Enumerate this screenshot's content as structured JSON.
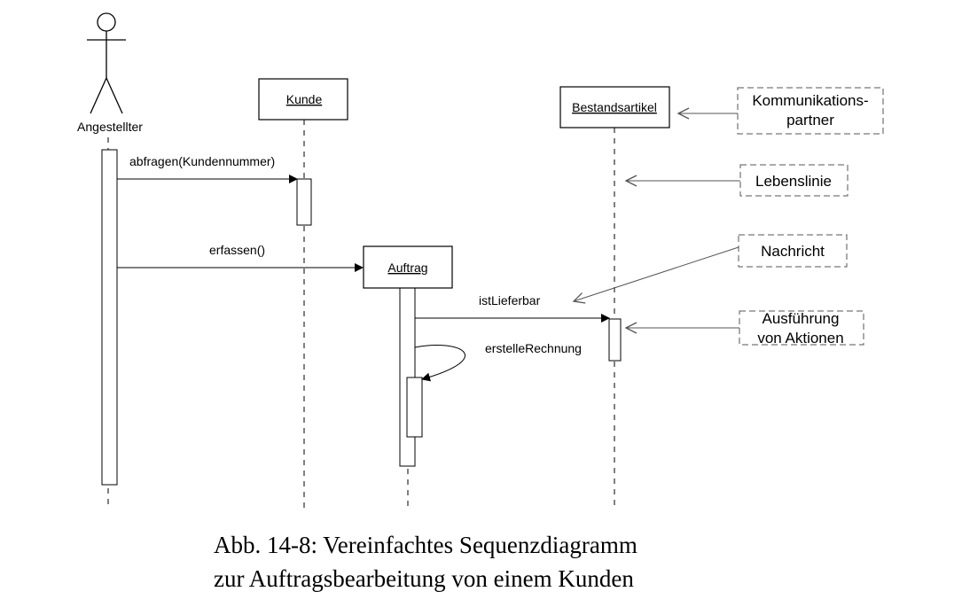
{
  "actor": {
    "label": "Angestellter"
  },
  "objects": [
    {
      "id": "kunde",
      "label": "Kunde"
    },
    {
      "id": "auftrag",
      "label": "Auftrag"
    },
    {
      "id": "bestandsartikel",
      "label": "Bestandsartikel"
    }
  ],
  "messages": [
    {
      "label": "abfragen(Kundennummer)"
    },
    {
      "label": "erfassen()"
    },
    {
      "label": "istLieferbar"
    },
    {
      "label": "erstelleRechnung"
    }
  ],
  "annotations": {
    "kommunikationspartner": {
      "line1": "Kommunikations-",
      "line2": "partner"
    },
    "lebenslinie": {
      "line1": "Lebenslinie"
    },
    "nachricht": {
      "line1": "Nachricht"
    },
    "ausfuehrung": {
      "line1": "Ausführung",
      "line2": "von Aktionen"
    }
  },
  "caption": {
    "line1": "Abb. 14-8: Vereinfachtes Sequenzdiagramm",
    "line2": "zur Auftragsbearbeitung von einem Kunden"
  }
}
